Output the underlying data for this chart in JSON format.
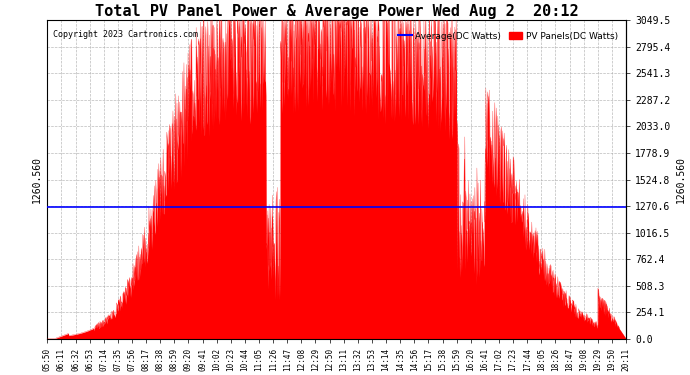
{
  "title": "Total PV Panel Power & Average Power Wed Aug 2  20:12",
  "copyright": "Copyright 2023 Cartronics.com",
  "legend_average": "Average(DC Watts)",
  "legend_panels": "PV Panels(DC Watts)",
  "average_value": 1260.56,
  "y_max": 3049.5,
  "y_min": 0.0,
  "y_ticks": [
    0.0,
    254.1,
    508.3,
    762.4,
    1016.5,
    1270.6,
    1524.8,
    1778.9,
    2033.0,
    2287.2,
    2541.3,
    2795.4,
    3049.5
  ],
  "background_color": "#ffffff",
  "fill_color": "#ff0000",
  "avg_line_color": "#0000ff",
  "title_fontsize": 11,
  "x_tick_labels": [
    "05:50",
    "06:11",
    "06:32",
    "06:53",
    "07:14",
    "07:35",
    "07:56",
    "08:17",
    "08:38",
    "08:59",
    "09:20",
    "09:41",
    "10:02",
    "10:23",
    "10:44",
    "11:05",
    "11:26",
    "11:47",
    "12:08",
    "12:29",
    "12:50",
    "13:11",
    "13:32",
    "13:53",
    "14:14",
    "14:35",
    "14:56",
    "15:17",
    "15:38",
    "15:59",
    "16:20",
    "16:41",
    "17:02",
    "17:23",
    "17:44",
    "18:05",
    "18:26",
    "18:47",
    "19:08",
    "19:29",
    "19:50",
    "20:11"
  ],
  "grid_color": "#aaaaaa",
  "spine_color": "#000000",
  "left_ylabel": "1260.560",
  "right_ylabel": "1260.560"
}
